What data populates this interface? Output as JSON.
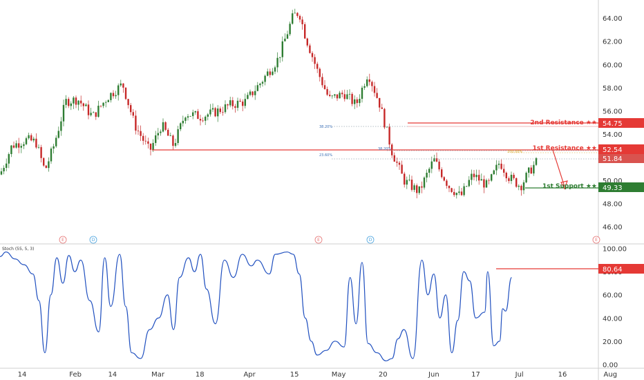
{
  "chart_data": [
    {
      "type": "candlestick",
      "title": "",
      "x_ticks": [
        "14",
        "Feb",
        "14",
        "Mar",
        "18",
        "Apr",
        "15",
        "May",
        "20",
        "Jun",
        "17",
        "Jul",
        "16",
        "Aug"
      ],
      "y_ticks": [
        "64.00",
        "62.00",
        "60.00",
        "58.00",
        "56.00",
        "54.00",
        "52.00",
        "50.00",
        "48.00",
        "46.00"
      ],
      "ylim": [
        44.7,
        65.2
      ],
      "price_path": [
        {
          "x": 0,
          "y": 50.5
        },
        {
          "x": 0.02,
          "y": 53.0
        },
        {
          "x": 0.045,
          "y": 53.5
        },
        {
          "x": 0.06,
          "y": 53.3
        },
        {
          "x": 0.075,
          "y": 50.8
        },
        {
          "x": 0.09,
          "y": 53.0
        },
        {
          "x": 0.11,
          "y": 56.8
        },
        {
          "x": 0.13,
          "y": 57.0
        },
        {
          "x": 0.155,
          "y": 55.5
        },
        {
          "x": 0.18,
          "y": 57.2
        },
        {
          "x": 0.205,
          "y": 58.3
        },
        {
          "x": 0.225,
          "y": 54.8
        },
        {
          "x": 0.25,
          "y": 52.5
        },
        {
          "x": 0.27,
          "y": 54.8
        },
        {
          "x": 0.29,
          "y": 53.0
        },
        {
          "x": 0.31,
          "y": 55.8
        },
        {
          "x": 0.335,
          "y": 55.5
        },
        {
          "x": 0.36,
          "y": 55.9
        },
        {
          "x": 0.385,
          "y": 56.5
        },
        {
          "x": 0.41,
          "y": 56.8
        },
        {
          "x": 0.435,
          "y": 58.4
        },
        {
          "x": 0.465,
          "y": 60.5
        },
        {
          "x": 0.49,
          "y": 64.2
        },
        {
          "x": 0.5,
          "y": 64.5
        },
        {
          "x": 0.51,
          "y": 62.5
        },
        {
          "x": 0.53,
          "y": 59.5
        },
        {
          "x": 0.55,
          "y": 57.0
        },
        {
          "x": 0.575,
          "y": 57.5
        },
        {
          "x": 0.595,
          "y": 56.5
        },
        {
          "x": 0.615,
          "y": 59.3
        },
        {
          "x": 0.635,
          "y": 56.5
        },
        {
          "x": 0.655,
          "y": 52.5
        },
        {
          "x": 0.675,
          "y": 50.0
        },
        {
          "x": 0.7,
          "y": 49.0
        },
        {
          "x": 0.725,
          "y": 51.8
        },
        {
          "x": 0.75,
          "y": 49.5
        },
        {
          "x": 0.77,
          "y": 48.6
        },
        {
          "x": 0.79,
          "y": 50.5
        },
        {
          "x": 0.815,
          "y": 49.5
        },
        {
          "x": 0.835,
          "y": 51.6
        },
        {
          "x": 0.85,
          "y": 50.3
        },
        {
          "x": 0.87,
          "y": 49.5
        },
        {
          "x": 0.885,
          "y": 50.8
        },
        {
          "x": 0.9,
          "y": 51.8
        }
      ],
      "levels": [
        {
          "label": "2nd Resistance ★★",
          "value": "54.75",
          "color": "#e53935"
        },
        {
          "label": "1st Resistance ★★",
          "value": "52.54",
          "color": "#e53935"
        },
        {
          "label": "",
          "value": "51.84",
          "color": "#e57373"
        },
        {
          "label": "1st Support ★★",
          "value": "49.33",
          "color": "#2e7d32"
        }
      ],
      "fib_labels": [
        "38.20%",
        "38.20%",
        "23.60%",
        "100.00%"
      ],
      "event_markers": [
        "E",
        "D",
        "E",
        "D",
        "E"
      ]
    },
    {
      "type": "line",
      "title": "Stoch (55, 5, 3)",
      "y_ticks": [
        "100.00",
        "80.00",
        "60.00",
        "40.00",
        "20.00",
        "0.00"
      ],
      "ylim": [
        -1,
        101
      ],
      "series": [
        {
          "values": [
            {
              "x": 0,
              "y": 93
            },
            {
              "x": 0.01,
              "y": 97
            },
            {
              "x": 0.025,
              "y": 91
            },
            {
              "x": 0.04,
              "y": 86
            },
            {
              "x": 0.055,
              "y": 78
            },
            {
              "x": 0.065,
              "y": 55
            },
            {
              "x": 0.075,
              "y": 10
            },
            {
              "x": 0.085,
              "y": 60
            },
            {
              "x": 0.095,
              "y": 92
            },
            {
              "x": 0.105,
              "y": 70
            },
            {
              "x": 0.115,
              "y": 94
            },
            {
              "x": 0.125,
              "y": 80
            },
            {
              "x": 0.135,
              "y": 90
            },
            {
              "x": 0.15,
              "y": 55
            },
            {
              "x": 0.165,
              "y": 28
            },
            {
              "x": 0.175,
              "y": 92
            },
            {
              "x": 0.185,
              "y": 50
            },
            {
              "x": 0.2,
              "y": 95
            },
            {
              "x": 0.21,
              "y": 50
            },
            {
              "x": 0.22,
              "y": 10
            },
            {
              "x": 0.235,
              "y": 5
            },
            {
              "x": 0.25,
              "y": 30
            },
            {
              "x": 0.265,
              "y": 40
            },
            {
              "x": 0.28,
              "y": 60
            },
            {
              "x": 0.29,
              "y": 30
            },
            {
              "x": 0.3,
              "y": 75
            },
            {
              "x": 0.315,
              "y": 92
            },
            {
              "x": 0.325,
              "y": 80
            },
            {
              "x": 0.335,
              "y": 95
            },
            {
              "x": 0.345,
              "y": 65
            },
            {
              "x": 0.36,
              "y": 35
            },
            {
              "x": 0.375,
              "y": 90
            },
            {
              "x": 0.39,
              "y": 75
            },
            {
              "x": 0.405,
              "y": 95
            },
            {
              "x": 0.42,
              "y": 85
            },
            {
              "x": 0.43,
              "y": 90
            },
            {
              "x": 0.45,
              "y": 78
            },
            {
              "x": 0.46,
              "y": 95
            },
            {
              "x": 0.48,
              "y": 97
            },
            {
              "x": 0.49,
              "y": 95
            },
            {
              "x": 0.5,
              "y": 78
            },
            {
              "x": 0.51,
              "y": 40
            },
            {
              "x": 0.52,
              "y": 20
            },
            {
              "x": 0.53,
              "y": 8
            },
            {
              "x": 0.545,
              "y": 12
            },
            {
              "x": 0.56,
              "y": 20
            },
            {
              "x": 0.575,
              "y": 15
            },
            {
              "x": 0.585,
              "y": 75
            },
            {
              "x": 0.595,
              "y": 35
            },
            {
              "x": 0.605,
              "y": 88
            },
            {
              "x": 0.615,
              "y": 18
            },
            {
              "x": 0.63,
              "y": 10
            },
            {
              "x": 0.645,
              "y": 3
            },
            {
              "x": 0.655,
              "y": 5
            },
            {
              "x": 0.665,
              "y": 22
            },
            {
              "x": 0.675,
              "y": 30
            },
            {
              "x": 0.69,
              "y": 5
            },
            {
              "x": 0.705,
              "y": 90
            },
            {
              "x": 0.715,
              "y": 60
            },
            {
              "x": 0.725,
              "y": 78
            },
            {
              "x": 0.735,
              "y": 40
            },
            {
              "x": 0.745,
              "y": 60
            },
            {
              "x": 0.755,
              "y": 10
            },
            {
              "x": 0.765,
              "y": 38
            },
            {
              "x": 0.775,
              "y": 80
            },
            {
              "x": 0.785,
              "y": 72
            },
            {
              "x": 0.795,
              "y": 40
            },
            {
              "x": 0.81,
              "y": 45
            },
            {
              "x": 0.815,
              "y": 80
            },
            {
              "x": 0.825,
              "y": 16
            },
            {
              "x": 0.835,
              "y": 20
            },
            {
              "x": 0.84,
              "y": 48
            },
            {
              "x": 0.845,
              "y": 46
            },
            {
              "x": 0.855,
              "y": 75
            }
          ]
        }
      ],
      "levels": [
        {
          "label": "",
          "value": "80.64",
          "color": "#e53935"
        }
      ]
    }
  ]
}
